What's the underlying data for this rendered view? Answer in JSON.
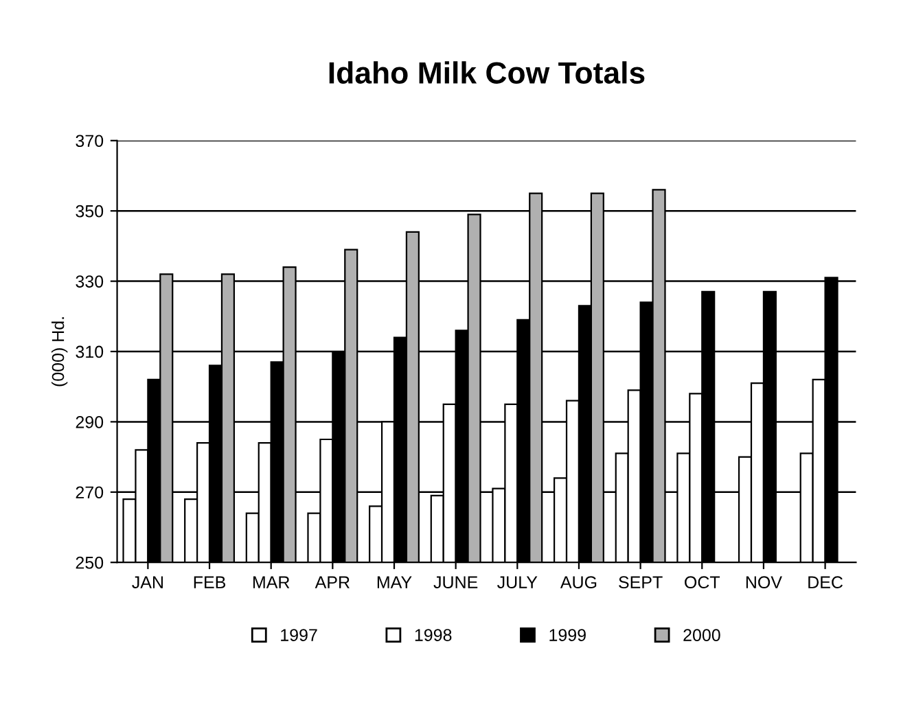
{
  "chart_data": {
    "type": "bar",
    "title": "Idaho Milk Cow Totals",
    "ylabel": "(000) Hd.",
    "categories": [
      "JAN",
      "FEB",
      "MAR",
      "APR",
      "MAY",
      "JUNE",
      "JULY",
      "AUG",
      "SEPT",
      "OCT",
      "NOV",
      "DEC"
    ],
    "series": [
      {
        "name": "1997",
        "color": "#ffffff",
        "values": [
          268,
          268,
          264,
          264,
          266,
          269,
          271,
          274,
          281,
          281,
          280,
          281
        ]
      },
      {
        "name": "1998",
        "color": "#ffffff",
        "values": [
          282,
          284,
          284,
          285,
          290,
          295,
          295,
          296,
          299,
          298,
          301,
          302
        ]
      },
      {
        "name": "1999",
        "color": "#000000",
        "values": [
          302,
          306,
          307,
          310,
          314,
          316,
          319,
          323,
          324,
          327,
          327,
          331
        ]
      },
      {
        "name": "2000",
        "color": "#b0b0b0",
        "values": [
          332,
          332,
          334,
          339,
          344,
          349,
          355,
          355,
          356,
          null,
          null,
          null
        ]
      }
    ],
    "ylim": [
      250,
      370
    ],
    "yticks": [
      250,
      270,
      290,
      310,
      330,
      350,
      370
    ],
    "grid": "y",
    "legend": "bottom"
  }
}
